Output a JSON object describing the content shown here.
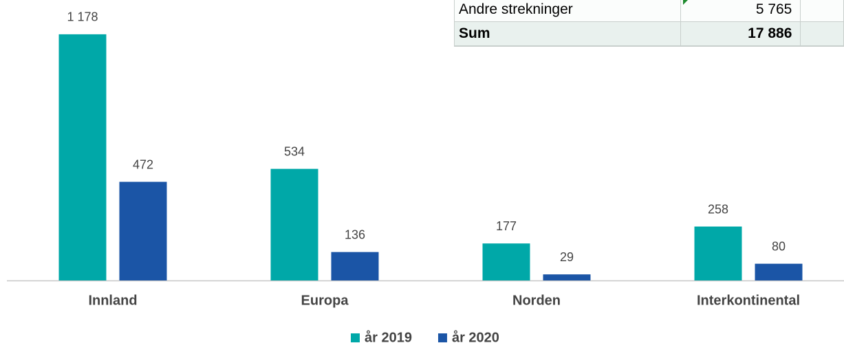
{
  "chart_data": {
    "type": "bar",
    "categories": [
      "Innland",
      "Europa",
      "Norden",
      "Interkontinental"
    ],
    "series": [
      {
        "name": "år 2019",
        "color": "#00a8a8",
        "values": [
          1178,
          534,
          177,
          258
        ],
        "value_labels": [
          "1 178",
          "534",
          "177",
          "258"
        ]
      },
      {
        "name": "år 2020",
        "color": "#1b55a6",
        "values": [
          472,
          136,
          29,
          80
        ]
      }
    ]
  },
  "table": {
    "rows": [
      [
        "Andre strekninger",
        "5 765"
      ],
      [
        "Sum",
        "17 886"
      ]
    ]
  }
}
